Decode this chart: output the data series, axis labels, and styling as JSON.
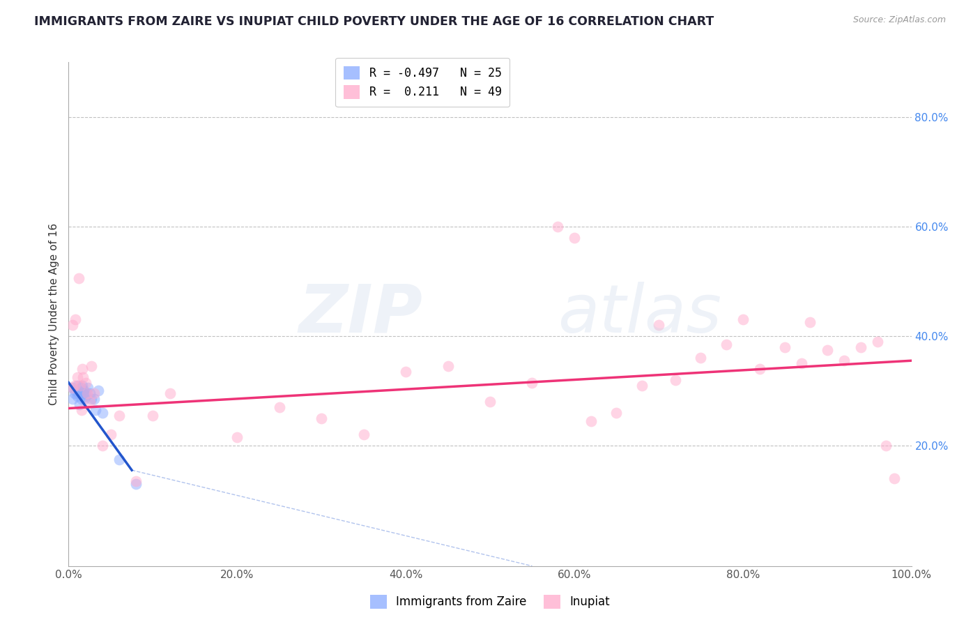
{
  "title": "IMMIGRANTS FROM ZAIRE VS INUPIAT CHILD POVERTY UNDER THE AGE OF 16 CORRELATION CHART",
  "source": "Source: ZipAtlas.com",
  "ylabel": "Child Poverty Under the Age of 16",
  "xlim": [
    0.0,
    1.0
  ],
  "ylim": [
    -0.02,
    0.9
  ],
  "xticks": [
    0.0,
    0.2,
    0.4,
    0.6,
    0.8,
    1.0
  ],
  "xtick_labels": [
    "0.0%",
    "20.0%",
    "40.0%",
    "60.0%",
    "80.0%",
    "100.0%"
  ],
  "ytick_labels": [
    "20.0%",
    "40.0%",
    "60.0%",
    "80.0%"
  ],
  "ytick_positions": [
    0.2,
    0.4,
    0.6,
    0.8
  ],
  "blue_scatter_x": [
    0.005,
    0.005,
    0.007,
    0.008,
    0.01,
    0.01,
    0.012,
    0.013,
    0.015,
    0.015,
    0.016,
    0.017,
    0.018,
    0.019,
    0.02,
    0.022,
    0.023,
    0.025,
    0.027,
    0.03,
    0.032,
    0.035,
    0.04,
    0.06,
    0.08
  ],
  "blue_scatter_y": [
    0.305,
    0.285,
    0.295,
    0.3,
    0.31,
    0.29,
    0.295,
    0.275,
    0.305,
    0.285,
    0.31,
    0.295,
    0.3,
    0.285,
    0.29,
    0.295,
    0.305,
    0.295,
    0.285,
    0.285,
    0.265,
    0.3,
    0.26,
    0.175,
    0.13
  ],
  "pink_scatter_x": [
    0.005,
    0.005,
    0.007,
    0.008,
    0.01,
    0.012,
    0.014,
    0.015,
    0.016,
    0.017,
    0.02,
    0.022,
    0.025,
    0.027,
    0.03,
    0.04,
    0.05,
    0.06,
    0.08,
    0.1,
    0.12,
    0.2,
    0.25,
    0.3,
    0.35,
    0.4,
    0.45,
    0.5,
    0.55,
    0.58,
    0.6,
    0.62,
    0.65,
    0.68,
    0.7,
    0.72,
    0.75,
    0.78,
    0.8,
    0.82,
    0.85,
    0.87,
    0.88,
    0.9,
    0.92,
    0.94,
    0.96,
    0.97,
    0.98
  ],
  "pink_scatter_y": [
    0.42,
    0.305,
    0.31,
    0.43,
    0.325,
    0.505,
    0.31,
    0.265,
    0.34,
    0.325,
    0.315,
    0.295,
    0.28,
    0.345,
    0.295,
    0.2,
    0.22,
    0.255,
    0.135,
    0.255,
    0.295,
    0.215,
    0.27,
    0.25,
    0.22,
    0.335,
    0.345,
    0.28,
    0.315,
    0.6,
    0.58,
    0.245,
    0.26,
    0.31,
    0.42,
    0.32,
    0.36,
    0.385,
    0.43,
    0.34,
    0.38,
    0.35,
    0.425,
    0.375,
    0.355,
    0.38,
    0.39,
    0.2,
    0.14
  ],
  "blue_line_x": [
    0.0,
    0.075
  ],
  "blue_line_y": [
    0.315,
    0.155
  ],
  "pink_line_x": [
    0.0,
    1.0
  ],
  "pink_line_y": [
    0.268,
    0.355
  ],
  "blue_dash_line_x": [
    0.075,
    0.55
  ],
  "blue_dash_line_y": [
    0.155,
    -0.02
  ],
  "scatter_size": 130,
  "scatter_alpha": 0.5,
  "title_color": "#222233",
  "blue_color": "#88aaff",
  "pink_color": "#ffaacc",
  "blue_line_color": "#2255cc",
  "pink_line_color": "#ee3377",
  "grid_color": "#bbbbbb",
  "background_color": "#ffffff"
}
